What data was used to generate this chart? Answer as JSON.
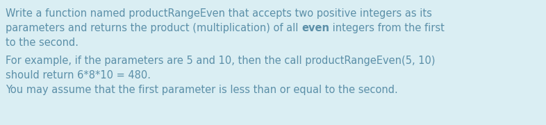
{
  "background_color": "#daeef3",
  "text_color": "#5b8fa8",
  "font_size": 10.5,
  "line1": "Write a function named productRangeEven that accepts two positive integers as its",
  "line2_before_bold": "parameters and returns the product (multiplication) of all ",
  "line2_bold": "even",
  "line2_after_bold": " integers from the first",
  "line3": "to the second.",
  "line4": "For example, if the parameters are 5 and 10, then the call productRangeEven(5, 10)",
  "line5": "should return 6*8*10 = 480.",
  "line6": "You may assume that the first parameter is less than or equal to the second.",
  "figsize": [
    7.86,
    1.8
  ],
  "dpi": 100
}
